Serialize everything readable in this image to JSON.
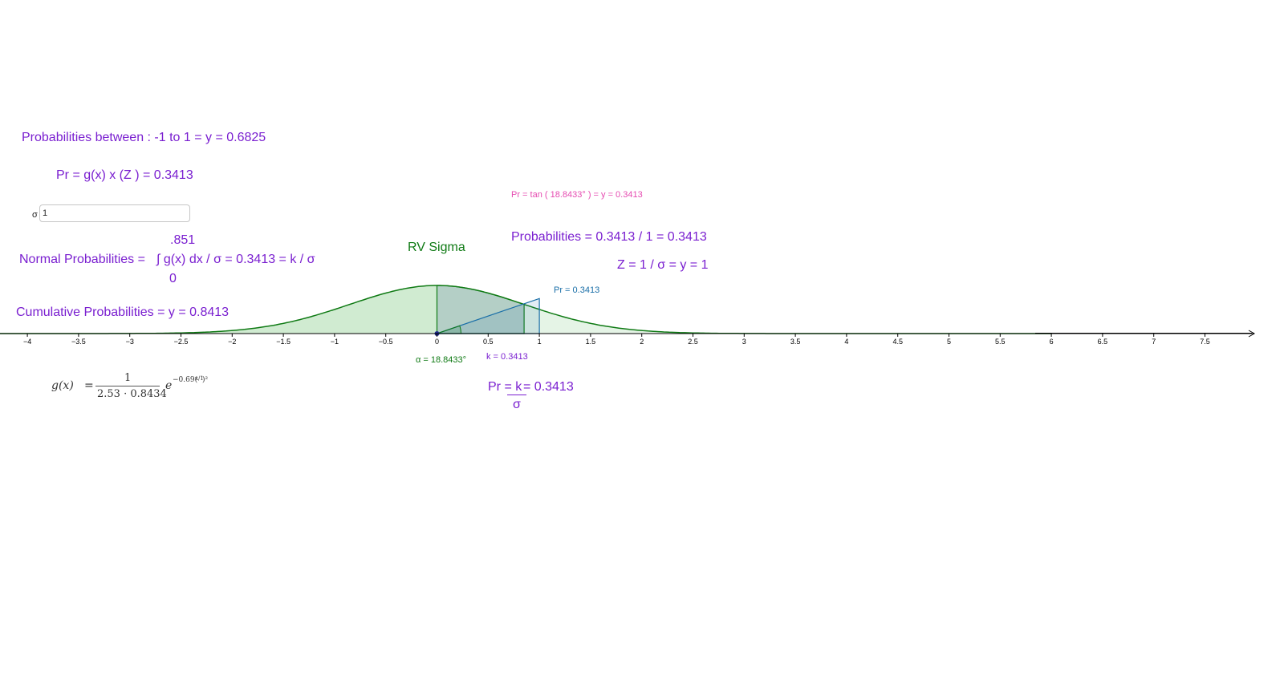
{
  "texts": {
    "prob_between": "Probabilities between : -1 to 1 = y = 0.6825",
    "pr_formula": "Pr =  g(x)  x  (Z ) = 0.3413",
    "pr_tan": "Pr = tan ( 18.8433° ) = y = 0.3413",
    "upper_limit": ".851",
    "normal_prob_label": "Normal Probabilities =",
    "integral_expr": "∫ g(x) dx / σ = 0.3413  =  k / σ",
    "lower_limit": "0",
    "rv_sigma": "RV Sigma",
    "probabilities": "Probabilities = 0.3413 / 1 = 0.3413",
    "z_formula": "Z = 1 / σ = y = 1",
    "pr_point": "Pr = 0.3413",
    "cumulative": "Cumulative Probabilities = y = 0.8413",
    "alpha": "α = 18.8433°",
    "k_value": "k = 0.3413",
    "pr_k_left": "Pr = k",
    "pr_k_right": " =  0.3413",
    "pr_k_denom": "σ"
  },
  "sigma_input": {
    "label": "σ",
    "value": "1"
  },
  "gx_formula": {
    "lhs": "g(x)",
    "equals": "=",
    "numerator": "1",
    "denominator": "2.53 · 0.8434",
    "base": "e",
    "exponent": "−0.69(",
    "exp_frac": "x/1",
    "exponent_end": ")²"
  },
  "chart_data": {
    "type": "area",
    "x_ticks": [
      -4,
      -3.5,
      -3,
      -2.5,
      -2,
      -1.5,
      -1,
      -0.5,
      0,
      0.5,
      1,
      1.5,
      2,
      2.5,
      3,
      3.5,
      4,
      4.5,
      5,
      5.5,
      6,
      6.5,
      7,
      7.5
    ],
    "x_tick_labels": [
      "−4",
      "−3.5",
      "−3",
      "−2.5",
      "−2",
      "−1.5",
      "−1",
      "−0.5",
      "0",
      "0.5",
      "1",
      "1.5",
      "2",
      "2.5",
      "3",
      "3.5",
      "4",
      "4.5",
      "5",
      "5.5",
      "6",
      "6.5",
      "7",
      "7.5"
    ],
    "curve": {
      "peak": 0.4688,
      "coef": 0.69
    },
    "shaded_full": [
      -3.9,
      3.9
    ],
    "shaded_dark": [
      0,
      0.851
    ],
    "triangle": {
      "x": 1,
      "y": 0.3413
    },
    "alpha_deg": 18.8433,
    "colors": {
      "curve": "#0f7a14",
      "fill": "#2ba32f",
      "triangle": "#1a6fa8",
      "axis": "#000000"
    }
  }
}
